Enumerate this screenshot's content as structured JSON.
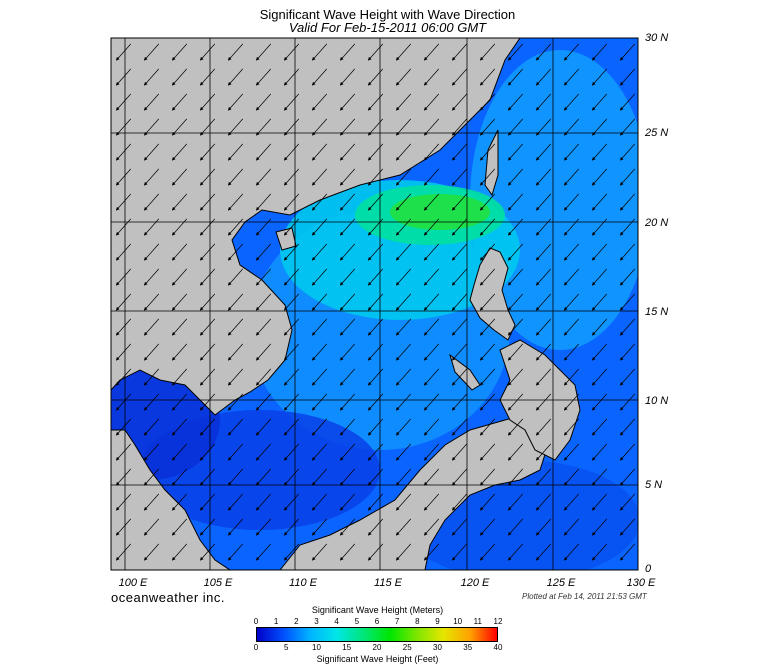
{
  "header": {
    "title": "Significant Wave Height with Wave Direction",
    "subtitle": "Valid For Feb-15-2011 06:00 GMT"
  },
  "map": {
    "lon_range": [
      98,
      130
    ],
    "lat_range": [
      0,
      30
    ],
    "grid_interval_deg": 5,
    "lat_labels": [
      "30 N",
      "25 N",
      "20 N",
      "15 N",
      "10 N",
      "5 N",
      "0"
    ],
    "lon_labels": [
      "100 E",
      "105 E",
      "110 E",
      "115 E",
      "120 E",
      "125 E",
      "130 E"
    ],
    "land_color": "#c0c0c0",
    "coast_color": "#000000",
    "wave_direction": "from northeast toward southwest",
    "max_wave_region": "Luzon Strait, about 4-5 m"
  },
  "footer": {
    "brand": "oceanweather inc.",
    "plotted": "Plotted at Feb 14, 2011 21:53 GMT"
  },
  "colorbar": {
    "meters_title": "Significant Wave Height (Meters)",
    "feet_title": "Significant Wave Height (Feet)",
    "meters_ticks": [
      "0",
      "1",
      "2",
      "3",
      "4",
      "5",
      "6",
      "7",
      "8",
      "9",
      "10",
      "11",
      "12"
    ],
    "feet_ticks": [
      "0",
      "5",
      "10",
      "15",
      "20",
      "25",
      "30",
      "35",
      "40"
    ],
    "colors": [
      "#0000c8",
      "#0050ff",
      "#00b4ff",
      "#00e6e6",
      "#00e678",
      "#00e600",
      "#7ee600",
      "#e6e600",
      "#ffa000",
      "#ff0000"
    ]
  }
}
